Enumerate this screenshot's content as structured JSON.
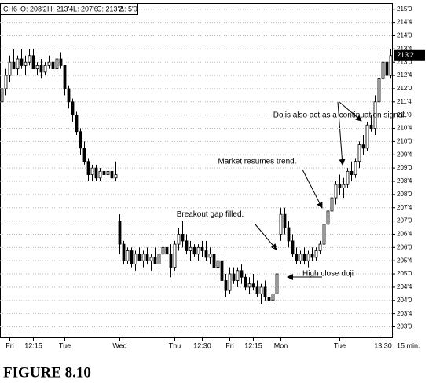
{
  "chart_data": {
    "type": "candlestick",
    "header": {
      "symbol": "CH6",
      "open": "O: 208'2",
      "high": "H: 213'4",
      "low": "L: 207'6",
      "close": "C: 213'2",
      "change": "Δ: 5'0"
    },
    "last_price": {
      "value": 213.25,
      "label": "213'2"
    },
    "x_unit": "15 min.",
    "caption": "FIGURE 8.10",
    "grid": true,
    "xlim": [
      -0.5,
      99.5
    ],
    "xticks": [
      {
        "value": 2,
        "label": "Fri"
      },
      {
        "value": 8,
        "label": "12:15"
      },
      {
        "value": 16,
        "label": "Tue"
      },
      {
        "value": 30,
        "label": "Wed"
      },
      {
        "value": 44,
        "label": "Thu"
      },
      {
        "value": 51,
        "label": "12:30"
      },
      {
        "value": 58,
        "label": "Fri"
      },
      {
        "value": 64,
        "label": "12:15"
      },
      {
        "value": 71,
        "label": "Mon"
      },
      {
        "value": 86,
        "label": "Tue"
      },
      {
        "value": 97,
        "label": "13:30"
      }
    ],
    "ylim": [
      202.6,
      215.2
    ],
    "yticks": [
      {
        "value": 203,
        "label": "203'0"
      },
      {
        "value": 203.5,
        "label": "203'4"
      },
      {
        "value": 204,
        "label": "204'0"
      },
      {
        "value": 204.5,
        "label": "204'4"
      },
      {
        "value": 205,
        "label": "205'0"
      },
      {
        "value": 205.5,
        "label": "205'4"
      },
      {
        "value": 206,
        "label": "206'0"
      },
      {
        "value": 206.5,
        "label": "206'4"
      },
      {
        "value": 207,
        "label": "207'0"
      },
      {
        "value": 207.5,
        "label": "207'4"
      },
      {
        "value": 208,
        "label": "208'0"
      },
      {
        "value": 208.5,
        "label": "208'4"
      },
      {
        "value": 209,
        "label": "209'0"
      },
      {
        "value": 209.5,
        "label": "209'4"
      },
      {
        "value": 210,
        "label": "210'0"
      },
      {
        "value": 210.5,
        "label": "210'4"
      },
      {
        "value": 211,
        "label": "211'0"
      },
      {
        "value": 211.5,
        "label": "211'4"
      },
      {
        "value": 212,
        "label": "212'0"
      },
      {
        "value": 212.5,
        "label": "212'4"
      },
      {
        "value": 213,
        "label": "213'0"
      },
      {
        "value": 213.5,
        "label": "213'4"
      },
      {
        "value": 214,
        "label": "214'0"
      },
      {
        "value": 214.5,
        "label": "214'4"
      },
      {
        "value": 215,
        "label": "215'0"
      }
    ],
    "annotations": [
      {
        "text": "Dojis also act as a continuation signal.",
        "x": 86,
        "y": 211.0
      },
      {
        "text": "Market resumes trend.",
        "x": 65,
        "y": 209.25
      },
      {
        "text": "Breakout gap filled.",
        "x": 53,
        "y": 207.25
      },
      {
        "text": "High close doji",
        "x": 83,
        "y": 205.0
      }
    ],
    "open": [
      211.5,
      212,
      212.5,
      213,
      212.75,
      213.125,
      212.875,
      213,
      213.25,
      212.75,
      212.875,
      212.625,
      212.875,
      213,
      212.75,
      213.125,
      212.875,
      212,
      211.5,
      211,
      210.375,
      209.75,
      209.25,
      208.75,
      209,
      208.625,
      208.875,
      208.75,
      208.875,
      208.625,
      207,
      206.125,
      205.5,
      205.875,
      205.375,
      205.75,
      205.5,
      205.75,
      205.5,
      205.625,
      205.375,
      205.75,
      206,
      205.75,
      205.25,
      206.125,
      206.5,
      206.25,
      205.875,
      206,
      205.75,
      206,
      205.875,
      205.625,
      205.75,
      205.25,
      205.5,
      204.75,
      204.375,
      205,
      204.75,
      205.125,
      204.875,
      204.5,
      204.625,
      204.5,
      204.25,
      204.5,
      204.125,
      204,
      204.25,
      206.5,
      207.25,
      206.75,
      206.25,
      205.75,
      205.5,
      205.75,
      205.5,
      205.75,
      205.625,
      205.875,
      206.125,
      206.875,
      207.375,
      207.875,
      208.375,
      208.25,
      208.375,
      208.875,
      208.75,
      209.25,
      209.875,
      209.75,
      210.625,
      210.5,
      211.5,
      212.375,
      213,
      212.5
    ],
    "high": [
      212.25,
      212.75,
      213.25,
      213.5,
      213.25,
      213.5,
      213.25,
      213.5,
      213.5,
      213,
      213.125,
      213,
      213.25,
      213.25,
      213.25,
      213.375,
      212.875,
      212.125,
      211.625,
      211.125,
      210.5,
      210,
      209.375,
      209.125,
      209.125,
      209,
      209.125,
      209,
      209,
      209.25,
      207.25,
      206.25,
      206,
      206,
      205.875,
      206,
      205.875,
      206,
      205.75,
      206,
      205.875,
      206.25,
      206.5,
      206.125,
      206.25,
      206.75,
      207,
      206.5,
      206.25,
      206.125,
      206.125,
      206.25,
      206.25,
      206,
      205.875,
      205.625,
      205.75,
      205,
      205.25,
      205.25,
      205.25,
      205.375,
      205,
      204.875,
      205,
      204.75,
      204.625,
      204.75,
      204.375,
      204.5,
      205.25,
      207.5,
      207.5,
      207,
      206.5,
      206,
      205.875,
      206,
      205.875,
      206,
      206,
      206.25,
      207,
      207.5,
      208,
      208.5,
      208.75,
      208.625,
      209,
      209.25,
      209.375,
      210,
      210.25,
      210.75,
      211,
      211.75,
      212.5,
      213.25,
      213.5,
      213.5
    ],
    "low": [
      210.75,
      211.75,
      212.25,
      212.75,
      212.5,
      212.75,
      212.5,
      212.875,
      212.75,
      212.5,
      212.375,
      212.5,
      212.75,
      212.625,
      212.625,
      212.75,
      211.75,
      211.25,
      210.75,
      210.25,
      209.5,
      209.125,
      208.5,
      208.5,
      208.5,
      208.5,
      208.625,
      208.5,
      208.5,
      208.5,
      205.75,
      205.375,
      205.375,
      205.25,
      205.125,
      205.5,
      205.25,
      205.375,
      205.125,
      205.375,
      205,
      205.5,
      205.625,
      204.875,
      205.125,
      205.875,
      206,
      205.75,
      205.5,
      205.625,
      205.5,
      205.625,
      205.5,
      205.375,
      205,
      204.875,
      204.5,
      204.125,
      204.25,
      204.625,
      204.5,
      204.625,
      204.375,
      204.25,
      204.375,
      204.125,
      203.875,
      204,
      203.75,
      203.875,
      204.125,
      206.25,
      206.5,
      206,
      205.625,
      205.375,
      205.375,
      205.375,
      205.25,
      205.5,
      205.5,
      205.75,
      206,
      206.5,
      207.25,
      207.625,
      208,
      207.875,
      208.25,
      208.5,
      208.625,
      209,
      209.5,
      209.625,
      210.375,
      210.25,
      211.25,
      212,
      212.25,
      212.375
    ],
    "close": [
      212,
      212.5,
      213,
      212.75,
      213.125,
      212.875,
      213,
      213.25,
      212.75,
      212.875,
      212.625,
      212.875,
      213,
      212.75,
      213.125,
      212.875,
      212,
      211.5,
      211,
      210.375,
      209.75,
      209.25,
      208.75,
      209,
      208.625,
      208.875,
      208.75,
      208.875,
      208.625,
      208.75,
      206.125,
      205.5,
      205.875,
      205.375,
      205.75,
      205.5,
      205.75,
      205.5,
      205.625,
      205.375,
      205.75,
      206,
      205.75,
      205.25,
      206.125,
      206.5,
      206.25,
      205.875,
      206,
      205.75,
      206,
      205.875,
      205.625,
      205.75,
      205.25,
      205.5,
      204.75,
      204.375,
      205,
      204.75,
      205.125,
      204.875,
      204.5,
      204.625,
      204.5,
      204.25,
      204.5,
      204.125,
      204,
      204.25,
      205,
      207.25,
      206.75,
      206.25,
      205.75,
      205.5,
      205.75,
      205.5,
      205.75,
      205.625,
      205.875,
      206.125,
      206.875,
      207.375,
      207.875,
      208.375,
      208.25,
      208.375,
      208.875,
      208.75,
      209.25,
      209.875,
      209.75,
      210.625,
      210.5,
      211.5,
      212.375,
      213,
      212.5,
      213.25
    ]
  }
}
